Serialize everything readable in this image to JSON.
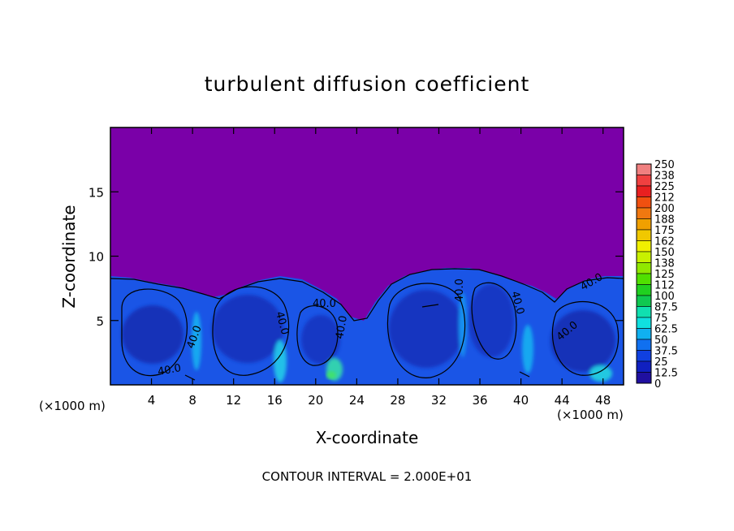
{
  "chart_data": {
    "type": "heatmap",
    "title": "turbulent diffusion coefficient",
    "xlabel": "X-coordinate",
    "ylabel": "Z-coordinate",
    "x_unit_left": "(×1000 m)",
    "x_unit_right": "(×1000 m)",
    "xlim": [
      0,
      50
    ],
    "ylim": [
      0,
      20
    ],
    "x_ticks": [
      4,
      8,
      12,
      16,
      20,
      24,
      28,
      32,
      36,
      40,
      44,
      48
    ],
    "y_ticks": [
      5,
      10,
      15
    ],
    "colorbar_levels": [
      "250",
      "238",
      "225",
      "212",
      "200",
      "188",
      "175",
      "162",
      "150",
      "138",
      "125",
      "112",
      "100",
      "87.5",
      "75",
      "62.5",
      "50",
      "37.5",
      "25",
      "12.5",
      "0"
    ],
    "colorbar_colors": [
      "#f08080",
      "#f04040",
      "#e82020",
      "#f05010",
      "#f07810",
      "#f0a000",
      "#f0c800",
      "#f0f000",
      "#c8f000",
      "#90e800",
      "#50e000",
      "#20d020",
      "#10c850",
      "#10e0b0",
      "#10e0e0",
      "#10b0f0",
      "#1070f0",
      "#1040e0",
      "#1020c0",
      "#2010a0",
      "#7a00a8"
    ],
    "contour_labels": [
      "40.0",
      "40.0",
      "40.0",
      "40.0",
      "40.0",
      "40.0",
      "40.0",
      "40.0",
      "40.0"
    ],
    "contour_interval_text": "CONTOUR INTERVAL = 2.000E+01",
    "grid": false,
    "legend_position": "right"
  }
}
